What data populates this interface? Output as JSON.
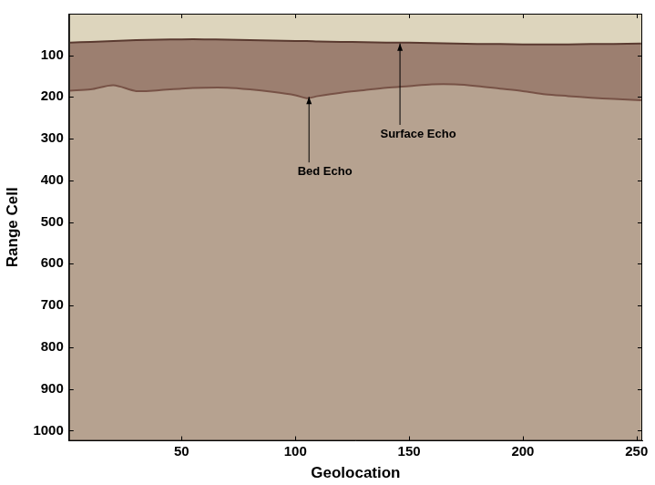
{
  "chart_data": {
    "type": "line",
    "x_label": "Geolocation",
    "y_label": "Range Cell",
    "x": [
      1,
      10,
      20,
      30,
      40,
      50,
      60,
      70,
      80,
      90,
      100,
      105,
      110,
      120,
      130,
      140,
      150,
      160,
      170,
      180,
      190,
      200,
      210,
      220,
      230,
      240,
      252
    ],
    "series": [
      {
        "color": "#5a3a30",
        "values": [
          70,
          68,
          66,
          64,
          63,
          62,
          62,
          63,
          64,
          65,
          66,
          66,
          67,
          68,
          69,
          70,
          70,
          71,
          72,
          73,
          73,
          74,
          74,
          74,
          73,
          73,
          72
        ]
      },
      {
        "color": "#6b4438",
        "values": [
          185,
          182,
          172,
          186,
          184,
          180,
          178,
          178,
          182,
          188,
          196,
          203,
          198,
          190,
          184,
          178,
          174,
          170,
          170,
          174,
          180,
          186,
          194,
          198,
          202,
          205,
          208
        ]
      }
    ],
    "xlim": [
      0.5,
      252.5
    ],
    "xticks": [
      50,
      100,
      150,
      200,
      250
    ],
    "ylim": [
      0.5,
      1024.5
    ],
    "yticks": [
      100,
      200,
      300,
      400,
      500,
      600,
      700,
      800,
      900,
      1000
    ],
    "grid": false,
    "annotations": [
      {
        "text": "Surface Echo",
        "x": 154,
        "y": 290,
        "arrow_x": 146,
        "arrow_y": 72
      },
      {
        "text": "Bed Echo",
        "x": 113,
        "y": 380,
        "arrow_x": 106,
        "arrow_y": 200
      }
    ]
  }
}
